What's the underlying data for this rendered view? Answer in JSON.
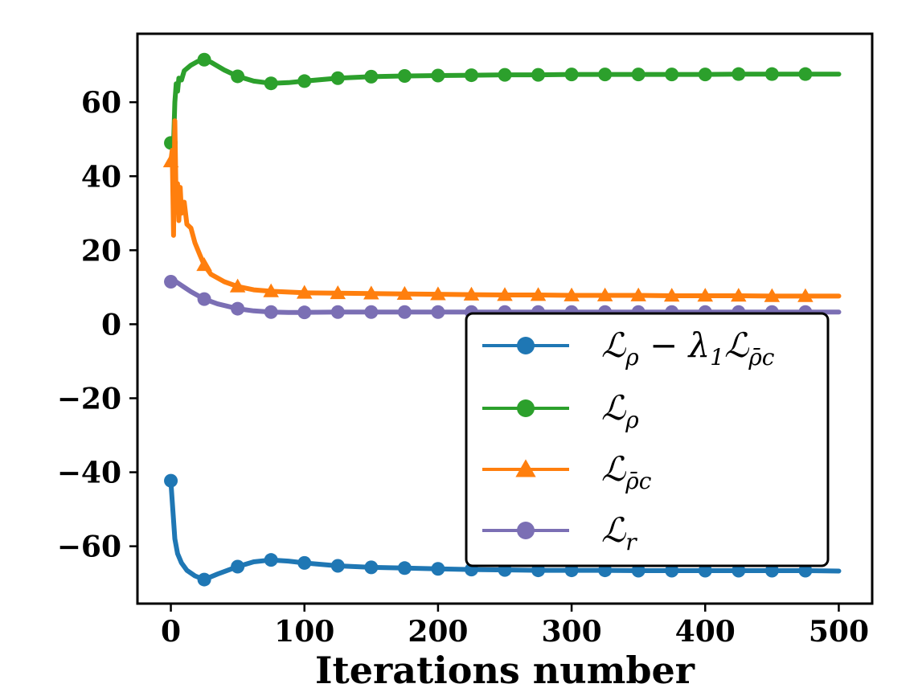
{
  "chart_data": {
    "type": "line",
    "title": "",
    "xlabel": "Iterations number",
    "ylabel": "",
    "xlim": [
      -25,
      525
    ],
    "ylim": [
      -75.5,
      78.5
    ],
    "xticks": [
      0,
      100,
      200,
      300,
      400,
      500
    ],
    "xtick_labels": [
      "0",
      "100",
      "200",
      "300",
      "400",
      "500"
    ],
    "yticks": [
      60,
      40,
      20,
      0,
      -20,
      -40,
      -60
    ],
    "ytick_labels": [
      "60",
      "40",
      "20",
      "0",
      "−20",
      "−40",
      "−60"
    ],
    "grid": false,
    "legend_position": "lower-right",
    "marker_x": [
      0,
      25,
      50,
      75,
      100,
      125,
      150,
      175,
      200,
      225,
      250,
      275,
      300,
      325,
      350,
      375,
      400,
      425,
      450,
      475
    ],
    "series": [
      {
        "name": "Lρ − λ1 Lρ̄c",
        "legend": {
          "main": "ℒ",
          "sub": "ρ",
          "rest": " − λ",
          "rest_sub": "1",
          "rest2": "ℒ",
          "rest2_sub": "ρ̄c"
        },
        "color": "#1f77b4",
        "marker": "circle",
        "x": [
          0,
          3,
          5,
          8,
          12,
          18,
          25,
          35,
          50,
          62,
          75,
          88,
          100,
          125,
          150,
          175,
          200,
          225,
          250,
          275,
          300,
          325,
          350,
          375,
          400,
          425,
          450,
          475,
          500
        ],
        "y": [
          -42.3,
          -58.0,
          -62.0,
          -64.5,
          -66.5,
          -68.0,
          -69.0,
          -67.5,
          -65.5,
          -64.2,
          -63.7,
          -64.0,
          -64.5,
          -65.3,
          -65.7,
          -65.9,
          -66.1,
          -66.3,
          -66.4,
          -66.5,
          -66.5,
          -66.5,
          -66.6,
          -66.6,
          -66.6,
          -66.6,
          -66.6,
          -66.6,
          -66.7
        ]
      },
      {
        "name": "Lρ",
        "legend": {
          "main": "ℒ",
          "sub": "ρ"
        },
        "color": "#2ca02c",
        "marker": "circle",
        "x": [
          0,
          2,
          3,
          4,
          5,
          6,
          8,
          10,
          15,
          20,
          25,
          30,
          40,
          50,
          62,
          75,
          88,
          100,
          125,
          150,
          175,
          200,
          225,
          250,
          275,
          300,
          325,
          350,
          375,
          400,
          425,
          450,
          475,
          500
        ],
        "y": [
          49.0,
          48.5,
          60.0,
          65.0,
          63.0,
          66.5,
          66.0,
          68.5,
          70.0,
          71.0,
          71.5,
          70.8,
          68.7,
          67.0,
          65.7,
          65.1,
          65.3,
          65.7,
          66.5,
          66.9,
          67.1,
          67.2,
          67.3,
          67.4,
          67.4,
          67.5,
          67.5,
          67.5,
          67.5,
          67.5,
          67.6,
          67.6,
          67.6,
          67.6
        ]
      },
      {
        "name": "Lρ̄c",
        "legend": {
          "main": "ℒ",
          "sub": "ρ̄c"
        },
        "color": "#ff7f0e",
        "marker": "triangle",
        "x": [
          0,
          1,
          2,
          3,
          4,
          5,
          6,
          7,
          8,
          10,
          12,
          15,
          18,
          22,
          25,
          30,
          40,
          50,
          62,
          75,
          88,
          100,
          125,
          150,
          175,
          200,
          225,
          250,
          275,
          300,
          325,
          350,
          375,
          400,
          425,
          450,
          475,
          500
        ],
        "y": [
          44.0,
          47.0,
          24.0,
          55.0,
          32.0,
          38.0,
          28.0,
          37.0,
          30.0,
          33.0,
          27.0,
          26.0,
          22.0,
          18.5,
          16.0,
          13.5,
          11.5,
          10.2,
          9.3,
          8.9,
          8.7,
          8.5,
          8.4,
          8.3,
          8.2,
          8.1,
          8.0,
          7.9,
          7.9,
          7.8,
          7.8,
          7.8,
          7.7,
          7.7,
          7.7,
          7.6,
          7.6,
          7.6
        ]
      },
      {
        "name": "Lr",
        "legend": {
          "main": "ℒ",
          "sub": "r"
        },
        "color": "#7b6fb4",
        "marker": "circle",
        "x": [
          0,
          3,
          5,
          10,
          15,
          20,
          25,
          35,
          50,
          62,
          75,
          88,
          100,
          125,
          150,
          175,
          200,
          225,
          250,
          275,
          300,
          325,
          350,
          375,
          400,
          425,
          450,
          475,
          500
        ],
        "y": [
          11.5,
          11.7,
          11.2,
          10.0,
          8.8,
          7.8,
          6.8,
          5.5,
          4.2,
          3.6,
          3.3,
          3.2,
          3.2,
          3.3,
          3.3,
          3.3,
          3.3,
          3.3,
          3.3,
          3.3,
          3.3,
          3.3,
          3.3,
          3.3,
          3.3,
          3.3,
          3.3,
          3.3,
          3.3
        ]
      }
    ]
  }
}
